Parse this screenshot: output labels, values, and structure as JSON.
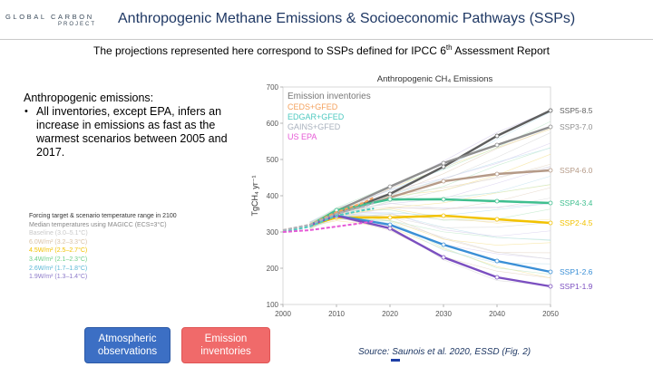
{
  "logo": {
    "line1": "GLOBAL CARBON",
    "line2": "PROJECT"
  },
  "header": {
    "title": "Anthropogenic Methane Emissions & Socioeconomic Pathways (SSPs)",
    "subtitle_pre": "The projections represented here correspond to SSPs defined for IPCC 6",
    "subtitle_sup": "th",
    "subtitle_post": " Assessment Report"
  },
  "note": {
    "heading": "Anthropogenic emissions:",
    "bullet": "All inventories, except EPA, infers an increase in emissions as fast as the warmest scenarios between 2005 and 2017."
  },
  "scenario_legend": {
    "heading": "Forcing target & scenario temperature range in 2100",
    "subheading": "Median temperatures using MAGICC (ECS=3°C)",
    "items": [
      {
        "label": "Baseline (3.0–5.1°C)",
        "color": "#c9c9c9"
      },
      {
        "label": "6.0W/m² (3.2–3.3°C)",
        "color": "#d9c3a8"
      },
      {
        "label": "4.5W/m² (2.5–2.7°C)",
        "color": "#f2c200"
      },
      {
        "label": "3.4W/m² (2.1–2.3°C)",
        "color": "#6fcf8a"
      },
      {
        "label": "2.6W/m² (1.7–1.8°C)",
        "color": "#5cb8d6"
      },
      {
        "label": "1.9W/m² (1.3–1.4°C)",
        "color": "#8c7ac9"
      }
    ]
  },
  "buttons": {
    "atmospheric": "Atmospheric observations",
    "inventories": "Emission inventories"
  },
  "source": "Source: Saunois et al. 2020, ESSD (Fig. 2)",
  "chart_data": {
    "type": "line",
    "title": "Anthropogenic CH₄ Emissions",
    "ylabel": "TgCH₄ yr⁻¹",
    "xlabel": "",
    "xlim": [
      2000,
      2050
    ],
    "ylim": [
      100,
      700
    ],
    "x_ticks": [
      "2000",
      "2010",
      "2020",
      "2030",
      "2040",
      "2050"
    ],
    "y_ticks": [
      "100",
      "200",
      "300",
      "400",
      "500",
      "600",
      "700"
    ],
    "inventory_legend": {
      "heading": "Emission inventories",
      "items": [
        {
          "label": "CEDS+GFED",
          "color": "#f4a25e"
        },
        {
          "label": "EDGAR+GFED",
          "color": "#4ec9c0"
        },
        {
          "label": "GAINS+GFED",
          "color": "#aab2be"
        },
        {
          "label": "US EPA",
          "color": "#e65ad6"
        }
      ]
    },
    "scenarios": [
      {
        "name": "SSP5-8.5",
        "color": "#5e5e5e",
        "x": [
          2005,
          2010,
          2020,
          2030,
          2040,
          2050
        ],
        "values": [
          318,
          350,
          405,
          480,
          565,
          635
        ]
      },
      {
        "name": "SSP3-7.0",
        "color": "#8f8f8f",
        "x": [
          2005,
          2010,
          2020,
          2030,
          2040,
          2050
        ],
        "values": [
          318,
          358,
          425,
          490,
          540,
          590
        ]
      },
      {
        "name": "SSP4-6.0",
        "color": "#b59a87",
        "x": [
          2005,
          2010,
          2020,
          2030,
          2040,
          2050
        ],
        "values": [
          318,
          350,
          395,
          440,
          460,
          470
        ]
      },
      {
        "name": "SSP4-3.4",
        "color": "#3fbf8f",
        "x": [
          2005,
          2010,
          2020,
          2030,
          2040,
          2050
        ],
        "values": [
          318,
          360,
          390,
          390,
          385,
          380
        ]
      },
      {
        "name": "SSP2-4.5",
        "color": "#f2c200",
        "x": [
          2005,
          2010,
          2020,
          2030,
          2040,
          2050
        ],
        "values": [
          318,
          340,
          340,
          345,
          335,
          325
        ]
      },
      {
        "name": "SSP1-2.6",
        "color": "#3a8fd6",
        "x": [
          2005,
          2010,
          2020,
          2030,
          2040,
          2050
        ],
        "values": [
          318,
          345,
          320,
          265,
          220,
          190
        ]
      },
      {
        "name": "SSP1-1.9",
        "color": "#7b4fc0",
        "x": [
          2005,
          2010,
          2020,
          2030,
          2040,
          2050
        ],
        "values": [
          318,
          345,
          310,
          230,
          175,
          150
        ]
      }
    ],
    "inventories": [
      {
        "name": "CEDS+GFED",
        "color": "#f4a25e",
        "x": [
          2000,
          2005,
          2010,
          2015,
          2017
        ],
        "values": [
          305,
          320,
          355,
          380,
          395
        ]
      },
      {
        "name": "EDGAR+GFED",
        "color": "#4ec9c0",
        "x": [
          2000,
          2005,
          2010,
          2015,
          2017
        ],
        "values": [
          300,
          315,
          345,
          360,
          365
        ]
      },
      {
        "name": "GAINS+GFED",
        "color": "#aab2be",
        "x": [
          2000,
          2005,
          2010,
          2015,
          2017
        ],
        "values": [
          305,
          320,
          350,
          370,
          380
        ]
      },
      {
        "name": "US EPA",
        "color": "#e65ad6",
        "x": [
          2000,
          2005,
          2010,
          2015,
          2017
        ],
        "values": [
          300,
          305,
          315,
          325,
          330
        ]
      }
    ]
  }
}
